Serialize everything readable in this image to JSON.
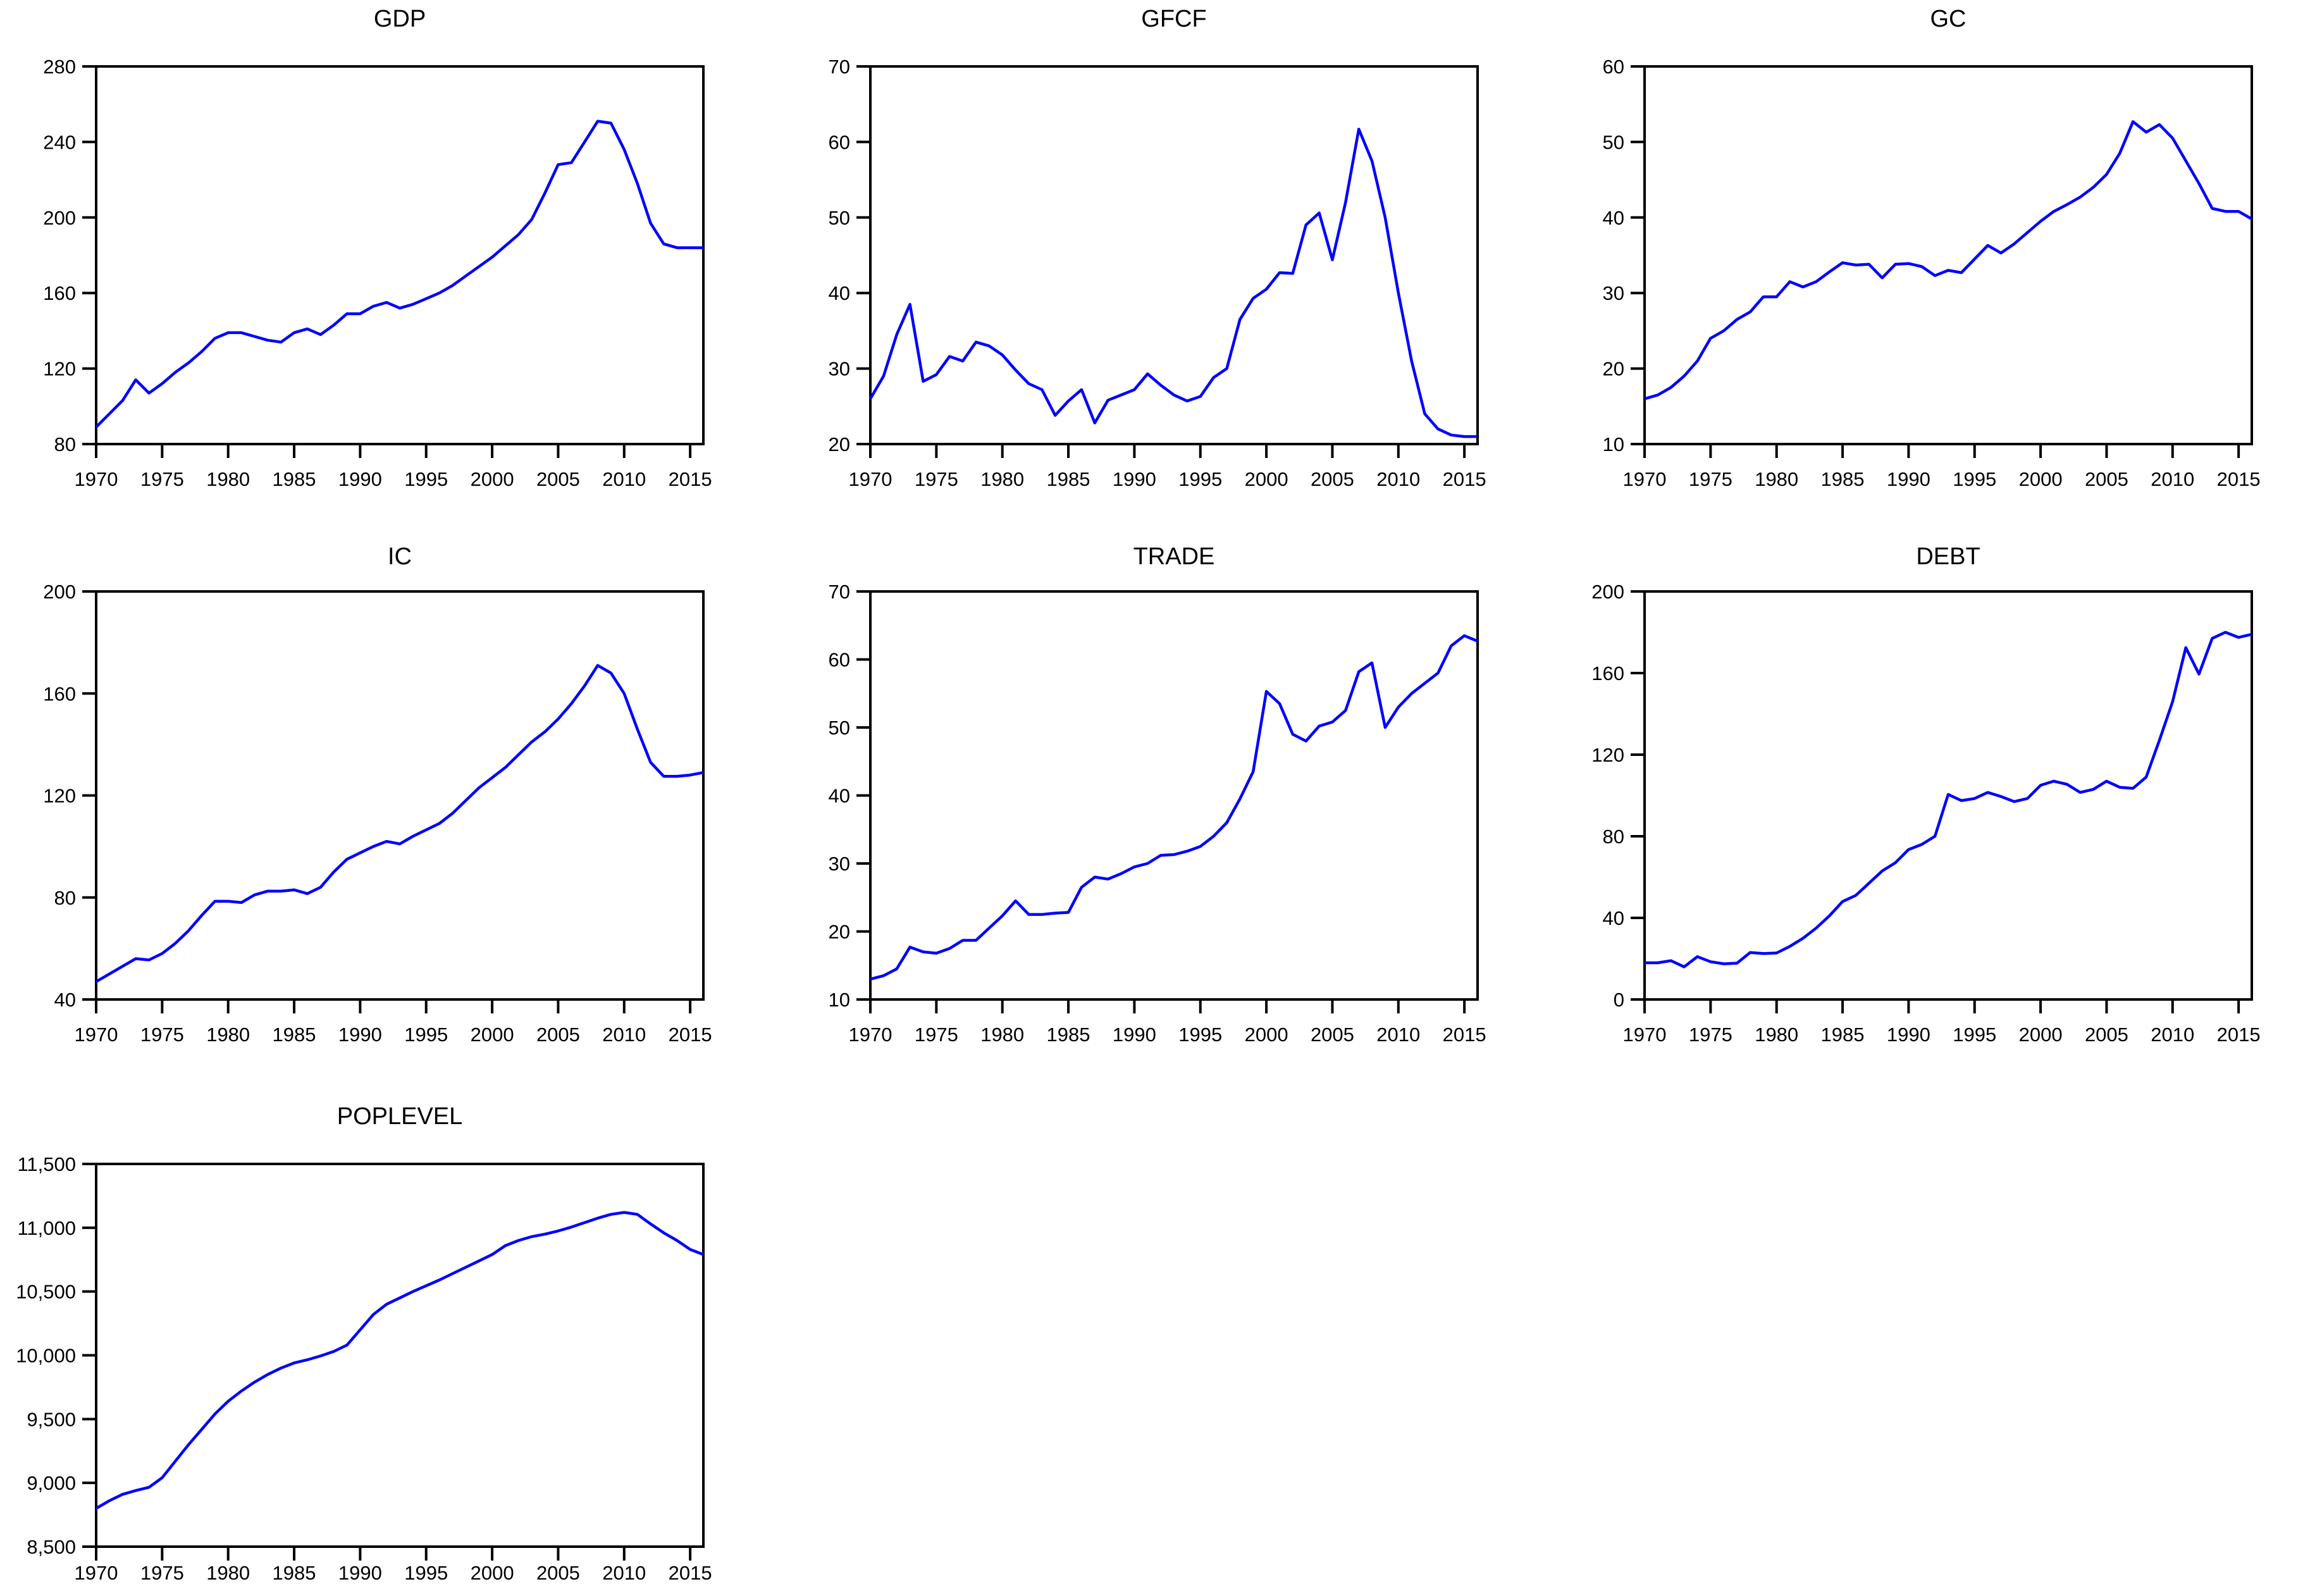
{
  "page": {
    "background": "#ffffff",
    "line_color": "#0000ff",
    "axis_color": "#000000",
    "text_color": "#000000",
    "layout": "3x3 grid of small multiple time-series plots, 7 charts total"
  },
  "chart_data": [
    {
      "type": "line",
      "title": "GDP",
      "x_start": 1970,
      "x_end": 2016,
      "x_ticks": [
        1970,
        1975,
        1980,
        1985,
        1990,
        1995,
        2000,
        2005,
        2010,
        2015
      ],
      "x_tick_labels": [
        "1970",
        "1975",
        "1980",
        "1985",
        "1990",
        "1995",
        "2000",
        "2005",
        "2010",
        "2015"
      ],
      "ylim": [
        80,
        280
      ],
      "y_ticks": [
        80,
        120,
        160,
        200,
        240,
        280
      ],
      "y_tick_labels": [
        "80",
        "120",
        "160",
        "200",
        "240",
        "280"
      ],
      "grid": false,
      "legend": "none",
      "values": [
        89,
        96,
        103,
        114,
        107,
        112,
        118,
        123,
        129,
        136,
        139,
        139,
        137,
        135,
        134,
        139,
        141,
        138,
        143,
        149,
        149,
        153,
        155,
        152,
        154,
        157,
        160,
        164,
        169,
        174,
        179,
        185,
        191,
        199,
        213,
        228,
        229,
        240,
        251,
        250,
        236,
        218,
        197,
        186,
        184,
        184,
        184
      ]
    },
    {
      "type": "line",
      "title": "GFCF",
      "x_start": 1970,
      "x_end": 2016,
      "x_ticks": [
        1970,
        1975,
        1980,
        1985,
        1990,
        1995,
        2000,
        2005,
        2010,
        2015
      ],
      "x_tick_labels": [
        "1970",
        "1975",
        "1980",
        "1985",
        "1990",
        "1995",
        "2000",
        "2005",
        "2010",
        "2015"
      ],
      "ylim": [
        20,
        70
      ],
      "y_ticks": [
        20,
        30,
        40,
        50,
        60,
        70
      ],
      "y_tick_labels": [
        "20",
        "30",
        "40",
        "50",
        "60",
        "70"
      ],
      "grid": false,
      "legend": "none",
      "values": [
        26,
        29,
        34.5,
        38.5,
        28.3,
        29.2,
        31.6,
        31,
        33.5,
        33,
        31.8,
        29.8,
        28,
        27.2,
        23.8,
        25.7,
        27.2,
        22.8,
        25.8,
        26.5,
        27.2,
        29.3,
        27.8,
        26.5,
        25.7,
        26.3,
        28.8,
        30,
        36.5,
        39.3,
        40.5,
        42.7,
        42.6,
        49,
        50.6,
        44.4,
        52,
        61.7,
        57.5,
        50,
        40,
        31,
        24,
        22,
        21.2,
        21,
        21
      ]
    },
    {
      "type": "line",
      "title": "GC",
      "x_start": 1970,
      "x_end": 2016,
      "x_ticks": [
        1970,
        1975,
        1980,
        1985,
        1990,
        1995,
        2000,
        2005,
        2010,
        2015
      ],
      "x_tick_labels": [
        "1970",
        "1975",
        "1980",
        "1985",
        "1990",
        "1995",
        "2000",
        "2005",
        "2010",
        "2015"
      ],
      "ylim": [
        10,
        60
      ],
      "y_ticks": [
        10,
        20,
        30,
        40,
        50,
        60
      ],
      "y_tick_labels": [
        "10",
        "20",
        "30",
        "40",
        "50",
        "60"
      ],
      "grid": false,
      "legend": "none",
      "values": [
        16,
        16.5,
        17.5,
        19,
        21,
        24,
        25,
        26.5,
        27.5,
        29.5,
        29.5,
        31.5,
        30.8,
        31.5,
        32.8,
        34,
        33.7,
        33.8,
        32,
        33.8,
        33.9,
        33.5,
        32.3,
        33,
        32.7,
        34.5,
        36.3,
        35.3,
        36.5,
        38,
        39.5,
        40.8,
        41.7,
        42.7,
        44,
        45.7,
        48.5,
        52.7,
        51.3,
        52.3,
        50.5,
        47.5,
        44.5,
        41.2,
        40.8,
        40.8,
        39.8
      ]
    },
    {
      "type": "line",
      "title": "IC",
      "x_start": 1970,
      "x_end": 2016,
      "x_ticks": [
        1970,
        1975,
        1980,
        1985,
        1990,
        1995,
        2000,
        2005,
        2010,
        2015
      ],
      "x_tick_labels": [
        "1970",
        "1975",
        "1980",
        "1985",
        "1990",
        "1995",
        "2000",
        "2005",
        "2010",
        "2015"
      ],
      "ylim": [
        40,
        200
      ],
      "y_ticks": [
        40,
        80,
        120,
        160,
        200
      ],
      "y_tick_labels": [
        "40",
        "80",
        "120",
        "160",
        "200"
      ],
      "grid": false,
      "legend": "none",
      "values": [
        47,
        50,
        53,
        56,
        55.5,
        58,
        62,
        67,
        73,
        78.5,
        78.5,
        78,
        81,
        82.5,
        82.5,
        83,
        81.5,
        84,
        90,
        95,
        97.5,
        100,
        102,
        101,
        104,
        106.5,
        109,
        113,
        118,
        123,
        127,
        131,
        136,
        141,
        145,
        150,
        156,
        163,
        171,
        168,
        160,
        146,
        133,
        127.5,
        127.5,
        128,
        129
      ]
    },
    {
      "type": "line",
      "title": "TRADE",
      "x_start": 1970,
      "x_end": 2016,
      "x_ticks": [
        1970,
        1975,
        1980,
        1985,
        1990,
        1995,
        2000,
        2005,
        2010,
        2015
      ],
      "x_tick_labels": [
        "1970",
        "1975",
        "1980",
        "1985",
        "1990",
        "1995",
        "2000",
        "2005",
        "2010",
        "2015"
      ],
      "ylim": [
        10,
        70
      ],
      "y_ticks": [
        10,
        20,
        30,
        40,
        50,
        60,
        70
      ],
      "y_tick_labels": [
        "10",
        "20",
        "30",
        "40",
        "50",
        "60",
        "70"
      ],
      "grid": false,
      "legend": "none",
      "values": [
        13,
        13.5,
        14.5,
        17.7,
        17,
        16.8,
        17.5,
        18.7,
        18.7,
        20.5,
        22.3,
        24.5,
        22.5,
        22.5,
        22.7,
        22.8,
        26.5,
        28,
        27.7,
        28.5,
        29.5,
        30,
        31.2,
        31.3,
        31.8,
        32.5,
        34,
        36,
        39.5,
        43.5,
        55.3,
        53.5,
        49,
        48,
        50.2,
        50.8,
        52.5,
        58.2,
        59.5,
        50,
        53,
        55,
        56.5,
        58,
        62,
        63.5,
        62.7
      ]
    },
    {
      "type": "line",
      "title": "DEBT",
      "x_start": 1970,
      "x_end": 2016,
      "x_ticks": [
        1970,
        1975,
        1980,
        1985,
        1990,
        1995,
        2000,
        2005,
        2010,
        2015
      ],
      "x_tick_labels": [
        "1970",
        "1975",
        "1980",
        "1985",
        "1990",
        "1995",
        "2000",
        "2005",
        "2010",
        "2015"
      ],
      "ylim": [
        0,
        200
      ],
      "y_ticks": [
        0,
        40,
        80,
        120,
        160,
        200
      ],
      "y_tick_labels": [
        "0",
        "40",
        "80",
        "120",
        "160",
        "200"
      ],
      "grid": false,
      "legend": "none",
      "values": [
        18,
        18,
        19,
        16,
        21,
        18.5,
        17.5,
        17.8,
        23,
        22.5,
        22.8,
        26,
        30,
        35,
        41,
        48,
        51,
        57,
        63,
        67,
        73.5,
        76,
        80,
        100.5,
        97.5,
        98.5,
        101.5,
        99.5,
        97,
        98.5,
        105,
        107,
        105.5,
        101.5,
        103,
        107,
        104,
        103.5,
        109,
        127,
        146,
        172.5,
        159.5,
        177,
        180,
        177.5,
        179
      ]
    },
    {
      "type": "line",
      "title": "POPLEVEL",
      "x_start": 1970,
      "x_end": 2016,
      "x_ticks": [
        1970,
        1975,
        1980,
        1985,
        1990,
        1995,
        2000,
        2005,
        2010,
        2015
      ],
      "x_tick_labels": [
        "1970",
        "1975",
        "1980",
        "1985",
        "1990",
        "1995",
        "2000",
        "2005",
        "2010",
        "2015"
      ],
      "ylim": [
        8500,
        11500
      ],
      "y_ticks": [
        8500,
        9000,
        9500,
        10000,
        10500,
        11000,
        11500
      ],
      "y_tick_labels": [
        "8,500",
        "9,000",
        "9,500",
        "10,000",
        "10,500",
        "11,000",
        "11,500"
      ],
      "grid": false,
      "legend": "none",
      "values": [
        8800,
        8860,
        8910,
        8940,
        8965,
        9040,
        9170,
        9300,
        9420,
        9540,
        9640,
        9720,
        9790,
        9850,
        9900,
        9940,
        9965,
        9995,
        10030,
        10080,
        10200,
        10320,
        10400,
        10450,
        10500,
        10545,
        10590,
        10640,
        10690,
        10740,
        10790,
        10860,
        10900,
        10930,
        10950,
        10975,
        11005,
        11040,
        11075,
        11105,
        11120,
        11105,
        11030,
        10960,
        10900,
        10830,
        10790
      ]
    }
  ]
}
